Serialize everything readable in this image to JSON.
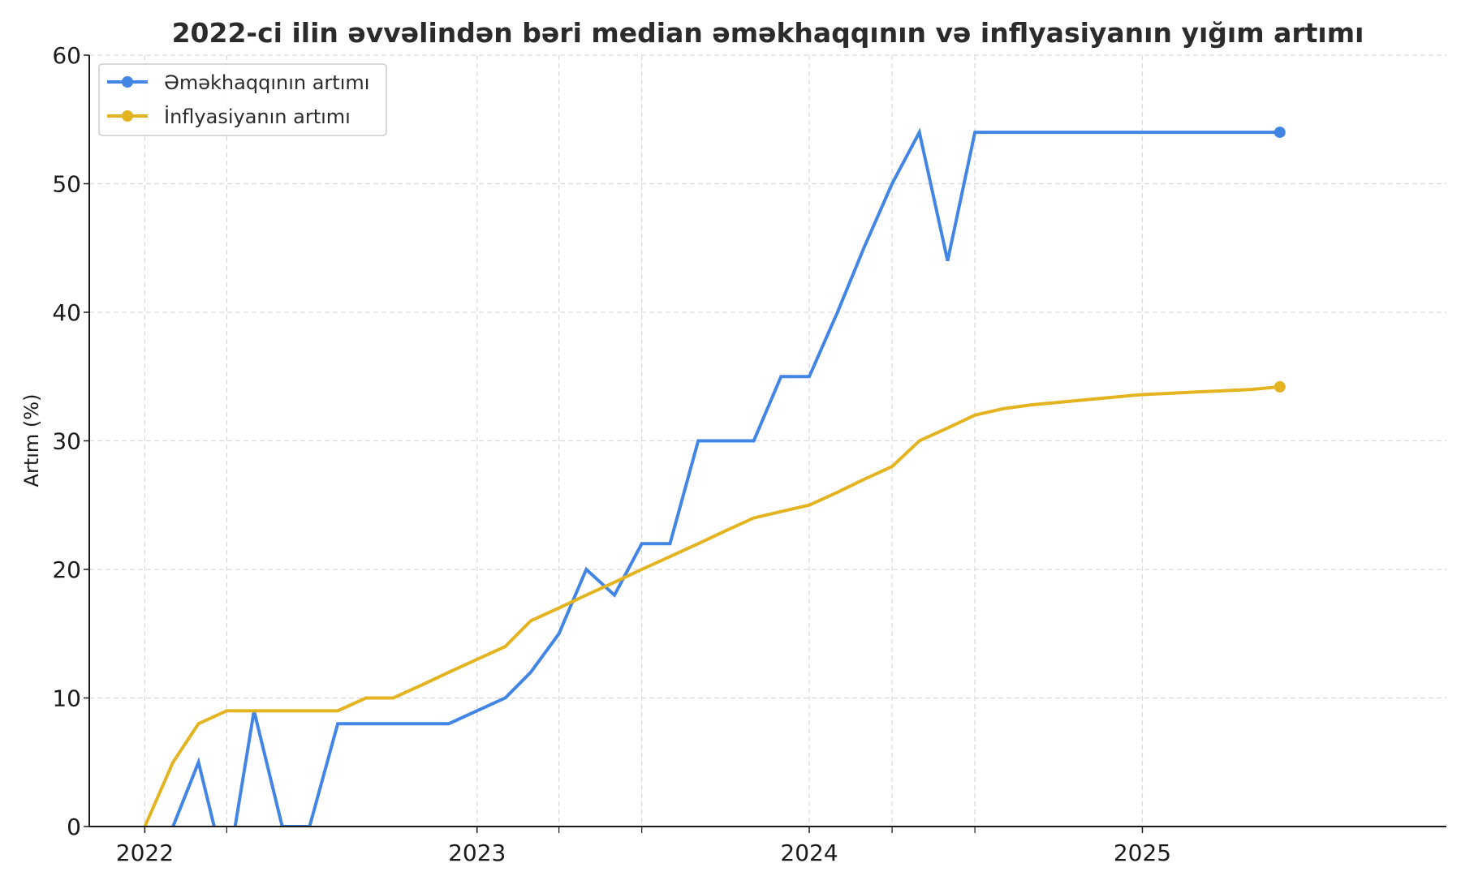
{
  "chart_data": {
    "type": "line",
    "title": "2022-ci ilin əvvəlindən bəri median əməkhaqqının və inflyasiyanın yığım artımı",
    "xlabel": "",
    "ylabel": "Artım (%)",
    "ylim": [
      0,
      60
    ],
    "xlim": [
      "2021-11-01",
      "2025-12-01"
    ],
    "y_ticks": [
      0,
      10,
      20,
      30,
      40,
      50,
      60
    ],
    "x_ticks": [
      {
        "date": "2022-01-01",
        "label": "2022"
      },
      {
        "date": "2023-01-01",
        "label": "2023"
      },
      {
        "date": "2024-01-01",
        "label": "2024"
      },
      {
        "date": "2025-01-01",
        "label": "2025"
      }
    ],
    "x_minor_ticks": [
      "2022-04-01",
      "2023-04-01",
      "2023-07-01",
      "2024-04-01",
      "2024-07-01"
    ],
    "grid": true,
    "legend_position": "top-left",
    "series": [
      {
        "name": "Əməkhaqqının artımı",
        "color": "#4285e4",
        "points": [
          [
            "2022-01-01",
            -3
          ],
          [
            "2022-02-01",
            0
          ],
          [
            "2022-03-01",
            5
          ],
          [
            "2022-04-01",
            -4
          ],
          [
            "2022-05-01",
            9
          ],
          [
            "2022-06-01",
            0
          ],
          [
            "2022-07-01",
            0
          ],
          [
            "2022-08-01",
            8
          ],
          [
            "2022-09-01",
            8
          ],
          [
            "2022-10-01",
            8
          ],
          [
            "2022-11-01",
            8
          ],
          [
            "2022-12-01",
            8
          ],
          [
            "2023-01-01",
            9
          ],
          [
            "2023-02-01",
            10
          ],
          [
            "2023-03-01",
            12
          ],
          [
            "2023-04-01",
            15
          ],
          [
            "2023-05-01",
            20
          ],
          [
            "2023-06-01",
            18
          ],
          [
            "2023-07-01",
            22
          ],
          [
            "2023-08-01",
            22
          ],
          [
            "2023-09-01",
            30
          ],
          [
            "2023-10-01",
            30
          ],
          [
            "2023-11-01",
            30
          ],
          [
            "2023-12-01",
            35
          ],
          [
            "2024-01-01",
            35
          ],
          [
            "2024-02-01",
            40
          ],
          [
            "2024-03-01",
            45
          ],
          [
            "2024-04-01",
            50
          ],
          [
            "2024-05-01",
            54
          ],
          [
            "2024-06-01",
            44
          ],
          [
            "2024-07-01",
            54
          ],
          [
            "2024-08-01",
            54
          ],
          [
            "2024-09-01",
            54
          ],
          [
            "2024-10-01",
            54
          ],
          [
            "2024-11-01",
            54
          ],
          [
            "2024-12-01",
            54
          ],
          [
            "2025-01-01",
            54
          ],
          [
            "2025-02-01",
            54
          ],
          [
            "2025-03-01",
            54
          ],
          [
            "2025-04-01",
            54
          ],
          [
            "2025-05-01",
            54
          ],
          [
            "2025-06-01",
            54
          ]
        ]
      },
      {
        "name": "İnflyasiyanın artımı",
        "color": "#e3b420",
        "points": [
          [
            "2022-01-01",
            0
          ],
          [
            "2022-02-01",
            5
          ],
          [
            "2022-03-01",
            8
          ],
          [
            "2022-04-01",
            9
          ],
          [
            "2022-05-01",
            9
          ],
          [
            "2022-06-01",
            9
          ],
          [
            "2022-07-01",
            9
          ],
          [
            "2022-08-01",
            9
          ],
          [
            "2022-09-01",
            10
          ],
          [
            "2022-10-01",
            10
          ],
          [
            "2022-11-01",
            11
          ],
          [
            "2022-12-01",
            12
          ],
          [
            "2023-01-01",
            13
          ],
          [
            "2023-02-01",
            14
          ],
          [
            "2023-03-01",
            16
          ],
          [
            "2023-04-01",
            17
          ],
          [
            "2023-05-01",
            18
          ],
          [
            "2023-06-01",
            19
          ],
          [
            "2023-07-01",
            20
          ],
          [
            "2023-08-01",
            21
          ],
          [
            "2023-09-01",
            22
          ],
          [
            "2023-10-01",
            23
          ],
          [
            "2023-11-01",
            24
          ],
          [
            "2023-12-01",
            24.5
          ],
          [
            "2024-01-01",
            25
          ],
          [
            "2024-02-01",
            26
          ],
          [
            "2024-03-01",
            27
          ],
          [
            "2024-04-01",
            28
          ],
          [
            "2024-05-01",
            30
          ],
          [
            "2024-06-01",
            31
          ],
          [
            "2024-07-01",
            32
          ],
          [
            "2024-08-01",
            32.5
          ],
          [
            "2024-09-01",
            32.8
          ],
          [
            "2024-10-01",
            33
          ],
          [
            "2024-11-01",
            33.2
          ],
          [
            "2024-12-01",
            33.4
          ],
          [
            "2025-01-01",
            33.6
          ],
          [
            "2025-02-01",
            33.7
          ],
          [
            "2025-03-01",
            33.8
          ],
          [
            "2025-04-01",
            33.9
          ],
          [
            "2025-05-01",
            34
          ],
          [
            "2025-06-01",
            34.2
          ]
        ]
      }
    ]
  }
}
